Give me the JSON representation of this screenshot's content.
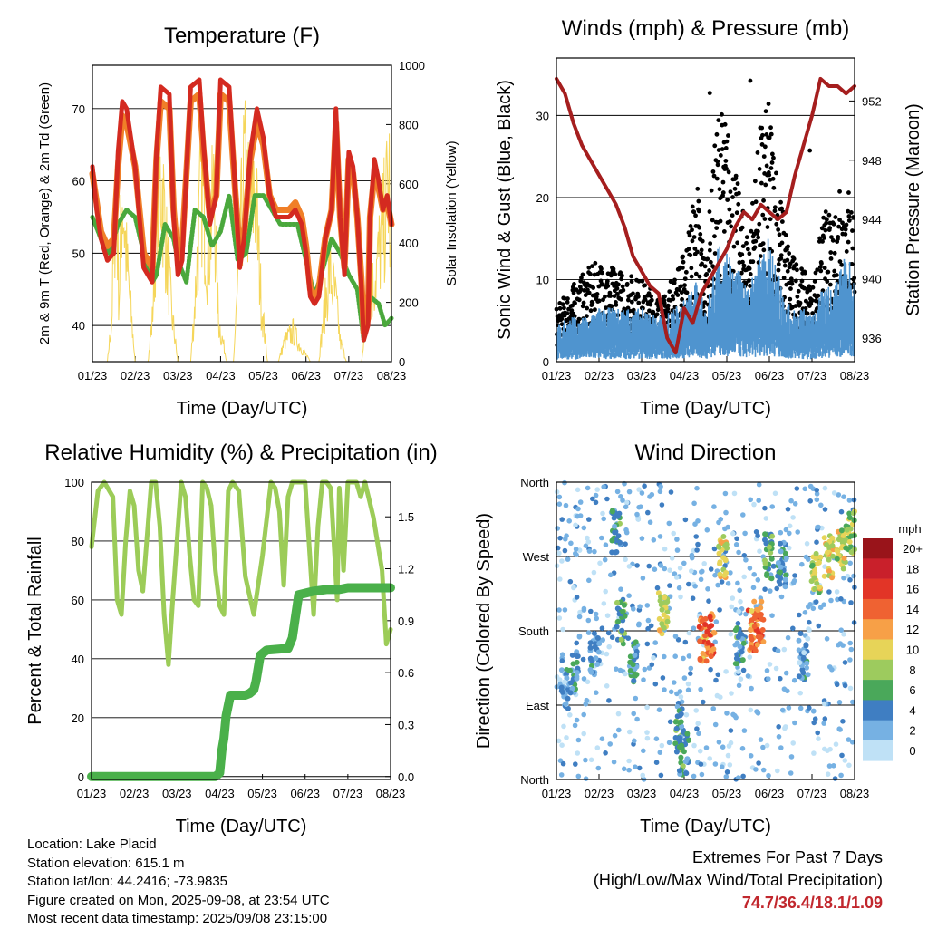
{
  "colors": {
    "temp_red": "#d42a20",
    "temp_orange": "#f07f28",
    "dew_green": "#4aa83c",
    "solar_yellow": "#f5d65a",
    "wind_blue": "#4f94cf",
    "gust_black": "#000000",
    "pressure_maroon": "#a51e1e",
    "rh_lightgreen": "#9ccc58",
    "precip_green": "#4ab04a"
  },
  "speed_colorbar": {
    "title": "mph",
    "labels": [
      "20+",
      "18",
      "16",
      "14",
      "12",
      "10",
      "8",
      "6",
      "4",
      "2",
      "0"
    ],
    "colors": [
      "#99141a",
      "#c9202b",
      "#e23527",
      "#ef6232",
      "#f7a047",
      "#e7d458",
      "#9dcb5e",
      "#4aa85a",
      "#3f7ec2",
      "#76b1e3",
      "#bfe1f6"
    ]
  },
  "chart_data": [
    {
      "type": "line",
      "title": "Temperature (F)",
      "xlabel": "Time (Day/UTC)",
      "ylabel": "2m & 9m T (Red, Orange) & 2m Td (Green)",
      "y2label": "Solar Insolation (Yellow)",
      "x_ticks": [
        "01/23",
        "02/23",
        "03/23",
        "04/23",
        "05/23",
        "06/23",
        "07/23",
        "08/23"
      ],
      "xlim": [
        0,
        7
      ],
      "ylim": [
        35,
        76
      ],
      "y_ticks": [
        40,
        50,
        60,
        70
      ],
      "y2lim": [
        0,
        1000
      ],
      "y2_ticks": [
        0,
        200,
        400,
        600,
        800,
        1000
      ],
      "grid": "horizontal",
      "series": [
        {
          "key": "t2m",
          "x": [
            0,
            0.1,
            0.2,
            0.35,
            0.5,
            0.6,
            0.7,
            0.8,
            1,
            1.2,
            1.4,
            1.5,
            1.6,
            1.8,
            1.9,
            2,
            2.1,
            2.3,
            2.5,
            2.6,
            2.75,
            2.9,
            3,
            3.2,
            3.35,
            3.45,
            3.55,
            3.7,
            3.85,
            4,
            4.15,
            4.3,
            4.45,
            4.6,
            4.75,
            4.9,
            5,
            5.1,
            5.2,
            5.3,
            5.45,
            5.6,
            5.7,
            5.8,
            5.9,
            6,
            6.1,
            6.2,
            6.3,
            6.35,
            6.45,
            6.5,
            6.6,
            6.7,
            6.8,
            6.9,
            7
          ],
          "y": [
            62,
            56,
            52,
            49,
            50,
            64,
            71,
            70,
            62,
            48,
            46,
            64,
            73,
            72,
            55,
            47,
            49,
            73,
            74,
            65,
            54,
            58,
            74,
            73,
            58,
            48,
            52,
            64,
            70,
            66,
            58,
            55,
            55,
            55,
            56,
            54,
            50,
            44,
            43,
            44,
            52,
            56,
            70,
            55,
            47,
            64,
            62,
            55,
            45,
            38,
            40,
            55,
            63,
            60,
            56,
            58,
            54
          ]
        },
        {
          "key": "t9m",
          "x": [
            0,
            0.2,
            0.35,
            0.5,
            0.6,
            0.7,
            0.8,
            1,
            1.2,
            1.4,
            1.5,
            1.6,
            1.8,
            1.9,
            2,
            2.1,
            2.3,
            2.5,
            2.6,
            2.75,
            2.9,
            3,
            3.2,
            3.35,
            3.45,
            3.55,
            3.7,
            3.85,
            4,
            4.15,
            4.3,
            4.45,
            4.6,
            4.75,
            4.9,
            5,
            5.1,
            5.2,
            5.3,
            5.45,
            5.6,
            5.7,
            5.8,
            5.9,
            6,
            6.1,
            6.2,
            6.3,
            6.35,
            6.45,
            6.5,
            6.6,
            6.7,
            6.8,
            6.9,
            7
          ],
          "y": [
            61,
            53,
            51,
            52,
            62,
            69,
            68,
            62,
            50,
            48,
            63,
            71,
            70,
            56,
            49,
            51,
            71,
            72,
            64,
            55,
            58,
            72,
            71,
            58,
            50,
            53,
            63,
            68,
            65,
            58,
            56,
            56,
            56,
            57,
            55,
            51,
            45,
            44,
            45,
            52,
            56,
            68,
            55,
            48,
            63,
            61,
            55,
            46,
            39,
            41,
            55,
            61,
            59,
            56,
            57,
            54
          ]
        },
        {
          "key": "td2m",
          "x": [
            0,
            0.2,
            0.4,
            0.6,
            0.8,
            1,
            1.2,
            1.4,
            1.5,
            1.7,
            1.9,
            2,
            2.2,
            2.4,
            2.6,
            2.8,
            3,
            3.2,
            3.4,
            3.6,
            3.8,
            4,
            4.2,
            4.4,
            4.6,
            4.8,
            5,
            5.2,
            5.4,
            5.6,
            5.8,
            6,
            6.2,
            6.35,
            6.5,
            6.7,
            6.85,
            7
          ],
          "y": [
            55,
            52,
            50,
            54,
            56,
            55,
            50,
            46,
            47,
            54,
            52,
            49,
            46,
            56,
            55,
            51,
            53,
            58,
            49,
            50,
            58,
            58,
            56,
            54,
            54,
            54,
            49,
            44,
            48,
            52,
            50,
            47,
            45,
            38,
            44,
            43,
            40,
            41
          ]
        }
      ],
      "solar": {
        "x": [
          0,
          0.35,
          0.45,
          0.55,
          0.62,
          0.7,
          0.8,
          1.0,
          1.3,
          1.4,
          1.5,
          1.62,
          1.72,
          1.85,
          2.0,
          2.3,
          2.4,
          2.55,
          2.7,
          2.85,
          2.95,
          3.15,
          3.3,
          3.4,
          3.55,
          3.7,
          3.8,
          3.95,
          4.1,
          4.35,
          4.5,
          4.7,
          4.85,
          5.1,
          5.3,
          5.4,
          5.55,
          5.7,
          5.8,
          5.95,
          6.1,
          6.3,
          6.4,
          6.6,
          6.8,
          6.95,
          7
        ],
        "y": [
          0,
          0,
          200,
          900,
          300,
          850,
          500,
          0,
          0,
          200,
          750,
          920,
          600,
          250,
          0,
          0,
          300,
          900,
          500,
          850,
          200,
          0,
          0,
          350,
          950,
          700,
          900,
          300,
          0,
          0,
          100,
          150,
          80,
          0,
          0,
          200,
          450,
          300,
          100,
          0,
          0,
          0,
          250,
          400,
          650,
          900,
          0
        ]
      }
    },
    {
      "type": "scatter",
      "title": "Winds (mph) & Pressure (mb)",
      "xlabel": "Time (Day/UTC)",
      "ylabel": "Sonic Wind & Gust (Blue, Black)",
      "y2label": "Station Pressure (Maroon)",
      "x_ticks": [
        "01/23",
        "02/23",
        "03/23",
        "04/23",
        "05/23",
        "06/23",
        "07/23",
        "08/23"
      ],
      "xlim": [
        0,
        7
      ],
      "ylim": [
        0,
        37
      ],
      "y_ticks": [
        0,
        10,
        20,
        30
      ],
      "y2lim": [
        934.4,
        954.9
      ],
      "y2_ticks": [
        936,
        940,
        944,
        948,
        952
      ],
      "grid": "horizontal",
      "wind_blue_envelope": {
        "x": [
          0,
          0.3,
          0.7,
          1,
          1.5,
          2,
          2.5,
          3,
          3.3,
          3.5,
          3.8,
          4,
          4.3,
          4.5,
          4.8,
          5,
          5.3,
          5.5,
          5.8,
          6,
          6.3,
          6.5,
          6.8,
          7
        ],
        "y": [
          4,
          5,
          5,
          6,
          6,
          6,
          5,
          7,
          9,
          6,
          13,
          12,
          10,
          8,
          12,
          14,
          8,
          6,
          6,
          5,
          9,
          8,
          12,
          10
        ]
      },
      "gust_envelope": {
        "x": [
          0,
          0.3,
          0.7,
          1,
          1.5,
          2,
          2.5,
          3,
          3.3,
          3.5,
          3.8,
          4,
          4.3,
          4.5,
          4.8,
          5,
          5.3,
          5.5,
          5.8,
          6,
          6.3,
          6.5,
          6.8,
          7
        ],
        "y": [
          6,
          8,
          10,
          11,
          10,
          9,
          7,
          12,
          20,
          11,
          28,
          26,
          18,
          14,
          26,
          28,
          17,
          12,
          10,
          8,
          17,
          15,
          20,
          17
        ]
      },
      "peak_gusts": [
        {
          "x": 3.6,
          "y": 33
        },
        {
          "x": 4.55,
          "y": 34.5
        },
        {
          "x": 5.95,
          "y": 26
        },
        {
          "x": 6.65,
          "y": 21
        }
      ],
      "pressure": {
        "x": [
          0,
          0.2,
          0.4,
          0.6,
          0.8,
          1,
          1.2,
          1.4,
          1.6,
          1.8,
          2,
          2.2,
          2.4,
          2.6,
          2.8,
          3,
          3.2,
          3.4,
          3.6,
          3.8,
          4,
          4.2,
          4.4,
          4.6,
          4.8,
          5,
          5.2,
          5.4,
          5.6,
          5.8,
          6,
          6.2,
          6.4,
          6.6,
          6.8,
          7
        ],
        "y": [
          953.5,
          952.5,
          950.5,
          949,
          948,
          947,
          946,
          945,
          943.5,
          941.5,
          940.5,
          939.5,
          939,
          936,
          935,
          938,
          937,
          939,
          940,
          941,
          942,
          943.5,
          944.5,
          944,
          945,
          944.5,
          944,
          944.5,
          947,
          949,
          951,
          953.5,
          953,
          953,
          952.5,
          953
        ]
      }
    },
    {
      "type": "line",
      "title": "Relative Humidity (%) & Precipitation (in)",
      "xlabel": "Time (Day/UTC)",
      "ylabel": "Percent & Total Rainfall",
      "x_ticks": [
        "01/23",
        "02/23",
        "03/23",
        "04/23",
        "05/23",
        "06/23",
        "07/23",
        "08/23"
      ],
      "xlim": [
        0,
        7
      ],
      "ylim": [
        -1,
        100
      ],
      "y_ticks": [
        0,
        20,
        40,
        60,
        80,
        100
      ],
      "y2lim": [
        -0.017,
        1.7
      ],
      "y2_ticks": [
        0.0,
        0.3,
        0.6,
        0.9,
        1.2,
        1.5
      ],
      "grid": "horizontal",
      "series": [
        {
          "key": "rh",
          "x": [
            0,
            0.15,
            0.3,
            0.5,
            0.6,
            0.7,
            0.8,
            0.9,
            1,
            1.1,
            1.2,
            1.4,
            1.5,
            1.6,
            1.7,
            1.8,
            1.9,
            2,
            2.1,
            2.2,
            2.3,
            2.4,
            2.5,
            2.6,
            2.7,
            2.8,
            2.9,
            3,
            3.1,
            3.2,
            3.3,
            3.45,
            3.6,
            3.8,
            4,
            4.2,
            4.3,
            4.4,
            4.5,
            4.6,
            4.7,
            4.8,
            5,
            5.2,
            5.3,
            5.4,
            5.5,
            5.6,
            5.75,
            5.8,
            5.9,
            6,
            6.2,
            6.3,
            6.4,
            6.6,
            6.8,
            6.9,
            7
          ],
          "y": [
            78,
            97,
            100,
            95,
            60,
            55,
            80,
            97,
            92,
            70,
            63,
            100,
            100,
            85,
            55,
            38,
            60,
            80,
            100,
            95,
            75,
            60,
            58,
            100,
            98,
            92,
            70,
            58,
            55,
            97,
            100,
            97,
            68,
            55,
            75,
            100,
            98,
            90,
            65,
            95,
            100,
            100,
            100,
            55,
            85,
            100,
            100,
            98,
            60,
            98,
            70,
            100,
            100,
            95,
            100,
            88,
            70,
            45,
            50
          ]
        },
        {
          "key": "precip",
          "x": [
            0,
            2.9,
            3.0,
            3.05,
            3.1,
            3.15,
            3.25,
            3.5,
            3.6,
            3.7,
            3.8,
            3.85,
            3.95,
            4.1,
            4.6,
            4.7,
            4.85,
            5.2,
            5.5,
            5.8,
            6,
            6.5,
            7
          ],
          "y": [
            0,
            0,
            0.02,
            0.15,
            0.22,
            0.35,
            0.47,
            0.47,
            0.47,
            0.48,
            0.5,
            0.55,
            0.7,
            0.73,
            0.74,
            0.8,
            1.05,
            1.07,
            1.08,
            1.08,
            1.09,
            1.09,
            1.09
          ]
        }
      ]
    },
    {
      "type": "scatter",
      "title": "Wind Direction",
      "xlabel": "Time (Day/UTC)",
      "ylabel": "Direction (Colored By Speed)",
      "x_ticks": [
        "01/23",
        "02/23",
        "03/23",
        "04/23",
        "05/23",
        "06/23",
        "07/23",
        "08/23"
      ],
      "xlim": [
        0,
        7
      ],
      "ylim": [
        0,
        360
      ],
      "y_ticks": [
        "North",
        "East",
        "South",
        "West",
        "North"
      ],
      "grid": "horizontal",
      "clusters": [
        {
          "x": 0.2,
          "y": 110,
          "spd": 3
        },
        {
          "x": 0.4,
          "y": 130,
          "spd": 4
        },
        {
          "x": 0.9,
          "y": 150,
          "spd": 3
        },
        {
          "x": 1.4,
          "y": 300,
          "spd": 5
        },
        {
          "x": 1.5,
          "y": 190,
          "spd": 6
        },
        {
          "x": 1.8,
          "y": 140,
          "spd": 4
        },
        {
          "x": 2.5,
          "y": 200,
          "spd": 9
        },
        {
          "x": 2.9,
          "y": 60,
          "spd": 5
        },
        {
          "x": 3.0,
          "y": 30,
          "spd": 5
        },
        {
          "x": 3.45,
          "y": 170,
          "spd": 13
        },
        {
          "x": 3.6,
          "y": 175,
          "spd": 14
        },
        {
          "x": 3.9,
          "y": 270,
          "spd": 10
        },
        {
          "x": 4.3,
          "y": 160,
          "spd": 5
        },
        {
          "x": 4.6,
          "y": 180,
          "spd": 13
        },
        {
          "x": 4.75,
          "y": 190,
          "spd": 14
        },
        {
          "x": 5.0,
          "y": 270,
          "spd": 6
        },
        {
          "x": 5.3,
          "y": 260,
          "spd": 4
        },
        {
          "x": 5.8,
          "y": 150,
          "spd": 3
        },
        {
          "x": 6.1,
          "y": 250,
          "spd": 9
        },
        {
          "x": 6.4,
          "y": 270,
          "spd": 10
        },
        {
          "x": 6.7,
          "y": 280,
          "spd": 9
        },
        {
          "x": 6.9,
          "y": 300,
          "spd": 8
        }
      ]
    }
  ],
  "station_info": {
    "location": "Location: Lake Placid",
    "elevation": "Station elevation: 615.1 m",
    "latlon": "Station lat/lon: 44.2416; -73.9835",
    "created": "Figure created on Mon, 2025-09-08, at 23:54 UTC",
    "latest": "Most recent data timestamp: 2025/09/08 23:15:00"
  },
  "extremes": {
    "title": "Extremes For Past 7 Days",
    "subtitle": "(High/Low/Max Wind/Total Precipitation)",
    "values": "74.7/36.4/18.1/1.09"
  }
}
